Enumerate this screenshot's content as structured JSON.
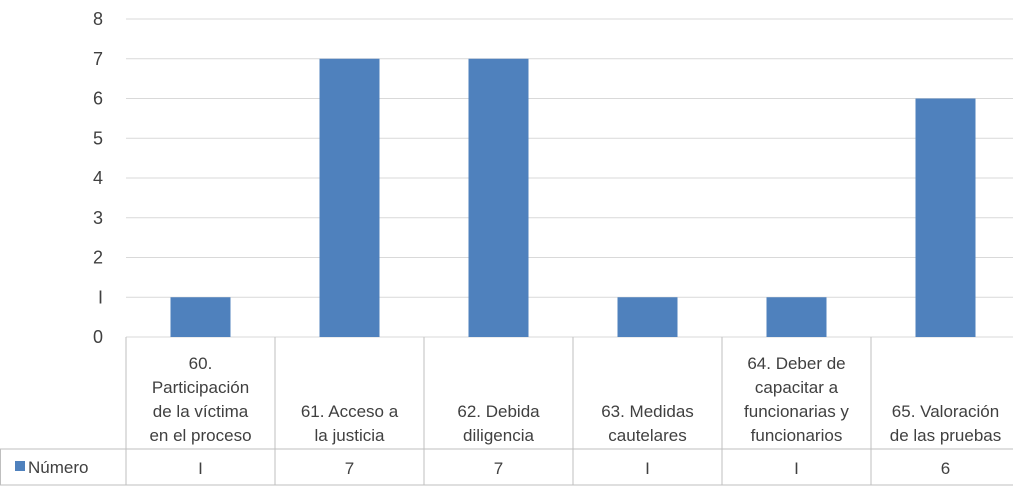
{
  "chart_data": {
    "type": "bar",
    "categories": [
      [
        "60.",
        "Participación",
        "de la víctima",
        "en el proceso"
      ],
      [
        "61. Acceso a",
        "la justicia"
      ],
      [
        "62. Debida",
        "diligencia"
      ],
      [
        "63. Medidas",
        "cautelares"
      ],
      [
        "64. Deber de",
        "capacitar a",
        "funcionarias y",
        "funcionarios"
      ],
      [
        "65. Valoración",
        "de las pruebas"
      ]
    ],
    "series": [
      {
        "name": "Número",
        "values": [
          1,
          7,
          7,
          1,
          1,
          6
        ],
        "labels": [
          "I",
          "7",
          "7",
          "I",
          "I",
          "6"
        ]
      }
    ],
    "ylim": [
      0,
      8
    ],
    "yticks": [
      "0",
      "I",
      "2",
      "3",
      "4",
      "5",
      "6",
      "7",
      "8"
    ],
    "grid": true,
    "legend": "data-table",
    "colors": {
      "bar": "#4f81bd",
      "grid": "#d9d9d9",
      "table_border": "#bfbfbf"
    }
  }
}
